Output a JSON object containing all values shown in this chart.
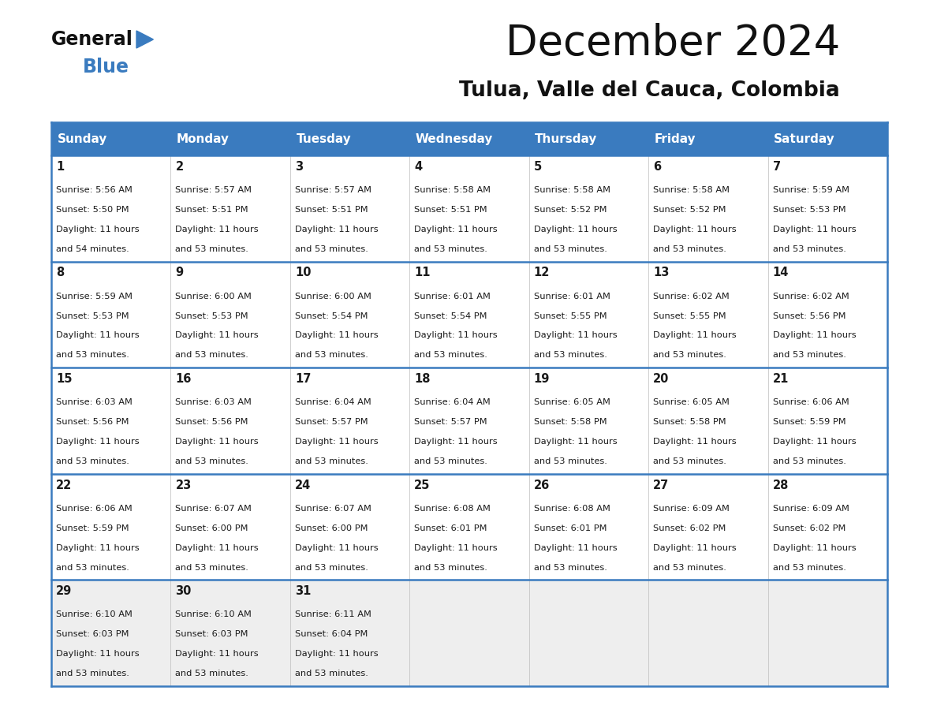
{
  "title": "December 2024",
  "subtitle": "Tulua, Valle del Cauca, Colombia",
  "header_color": "#3a7bbf",
  "header_text_color": "#ffffff",
  "cell_bg_white": "#ffffff",
  "cell_bg_gray": "#eeeeee",
  "text_color": "#1a1a1a",
  "border_color": "#3a7bbf",
  "days_of_week": [
    "Sunday",
    "Monday",
    "Tuesday",
    "Wednesday",
    "Thursday",
    "Friday",
    "Saturday"
  ],
  "calendar": [
    [
      {
        "day": 1,
        "sunrise": "5:56 AM",
        "sunset": "5:50 PM",
        "daylight": "11 hours and 54 minutes."
      },
      {
        "day": 2,
        "sunrise": "5:57 AM",
        "sunset": "5:51 PM",
        "daylight": "11 hours and 53 minutes."
      },
      {
        "day": 3,
        "sunrise": "5:57 AM",
        "sunset": "5:51 PM",
        "daylight": "11 hours and 53 minutes."
      },
      {
        "day": 4,
        "sunrise": "5:58 AM",
        "sunset": "5:51 PM",
        "daylight": "11 hours and 53 minutes."
      },
      {
        "day": 5,
        "sunrise": "5:58 AM",
        "sunset": "5:52 PM",
        "daylight": "11 hours and 53 minutes."
      },
      {
        "day": 6,
        "sunrise": "5:58 AM",
        "sunset": "5:52 PM",
        "daylight": "11 hours and 53 minutes."
      },
      {
        "day": 7,
        "sunrise": "5:59 AM",
        "sunset": "5:53 PM",
        "daylight": "11 hours and 53 minutes."
      }
    ],
    [
      {
        "day": 8,
        "sunrise": "5:59 AM",
        "sunset": "5:53 PM",
        "daylight": "11 hours and 53 minutes."
      },
      {
        "day": 9,
        "sunrise": "6:00 AM",
        "sunset": "5:53 PM",
        "daylight": "11 hours and 53 minutes."
      },
      {
        "day": 10,
        "sunrise": "6:00 AM",
        "sunset": "5:54 PM",
        "daylight": "11 hours and 53 minutes."
      },
      {
        "day": 11,
        "sunrise": "6:01 AM",
        "sunset": "5:54 PM",
        "daylight": "11 hours and 53 minutes."
      },
      {
        "day": 12,
        "sunrise": "6:01 AM",
        "sunset": "5:55 PM",
        "daylight": "11 hours and 53 minutes."
      },
      {
        "day": 13,
        "sunrise": "6:02 AM",
        "sunset": "5:55 PM",
        "daylight": "11 hours and 53 minutes."
      },
      {
        "day": 14,
        "sunrise": "6:02 AM",
        "sunset": "5:56 PM",
        "daylight": "11 hours and 53 minutes."
      }
    ],
    [
      {
        "day": 15,
        "sunrise": "6:03 AM",
        "sunset": "5:56 PM",
        "daylight": "11 hours and 53 minutes."
      },
      {
        "day": 16,
        "sunrise": "6:03 AM",
        "sunset": "5:56 PM",
        "daylight": "11 hours and 53 minutes."
      },
      {
        "day": 17,
        "sunrise": "6:04 AM",
        "sunset": "5:57 PM",
        "daylight": "11 hours and 53 minutes."
      },
      {
        "day": 18,
        "sunrise": "6:04 AM",
        "sunset": "5:57 PM",
        "daylight": "11 hours and 53 minutes."
      },
      {
        "day": 19,
        "sunrise": "6:05 AM",
        "sunset": "5:58 PM",
        "daylight": "11 hours and 53 minutes."
      },
      {
        "day": 20,
        "sunrise": "6:05 AM",
        "sunset": "5:58 PM",
        "daylight": "11 hours and 53 minutes."
      },
      {
        "day": 21,
        "sunrise": "6:06 AM",
        "sunset": "5:59 PM",
        "daylight": "11 hours and 53 minutes."
      }
    ],
    [
      {
        "day": 22,
        "sunrise": "6:06 AM",
        "sunset": "5:59 PM",
        "daylight": "11 hours and 53 minutes."
      },
      {
        "day": 23,
        "sunrise": "6:07 AM",
        "sunset": "6:00 PM",
        "daylight": "11 hours and 53 minutes."
      },
      {
        "day": 24,
        "sunrise": "6:07 AM",
        "sunset": "6:00 PM",
        "daylight": "11 hours and 53 minutes."
      },
      {
        "day": 25,
        "sunrise": "6:08 AM",
        "sunset": "6:01 PM",
        "daylight": "11 hours and 53 minutes."
      },
      {
        "day": 26,
        "sunrise": "6:08 AM",
        "sunset": "6:01 PM",
        "daylight": "11 hours and 53 minutes."
      },
      {
        "day": 27,
        "sunrise": "6:09 AM",
        "sunset": "6:02 PM",
        "daylight": "11 hours and 53 minutes."
      },
      {
        "day": 28,
        "sunrise": "6:09 AM",
        "sunset": "6:02 PM",
        "daylight": "11 hours and 53 minutes."
      }
    ],
    [
      {
        "day": 29,
        "sunrise": "6:10 AM",
        "sunset": "6:03 PM",
        "daylight": "11 hours and 53 minutes."
      },
      {
        "day": 30,
        "sunrise": "6:10 AM",
        "sunset": "6:03 PM",
        "daylight": "11 hours and 53 minutes."
      },
      {
        "day": 31,
        "sunrise": "6:11 AM",
        "sunset": "6:04 PM",
        "daylight": "11 hours and 53 minutes."
      },
      null,
      null,
      null,
      null
    ]
  ]
}
